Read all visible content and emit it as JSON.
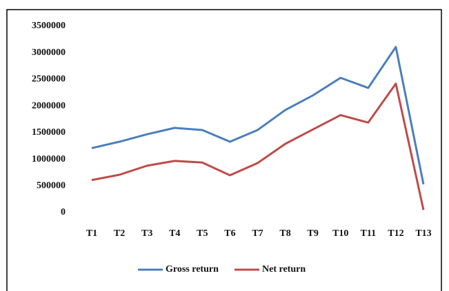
{
  "chart_data": {
    "type": "line",
    "categories": [
      "T1",
      "T2",
      "T3",
      "T4",
      "T5",
      "T6",
      "T7",
      "T8",
      "T9",
      "T10",
      "T11",
      "T12",
      "T13"
    ],
    "series": [
      {
        "name": "Gross return",
        "color": "#4a7ebb",
        "values": [
          1210000,
          1330000,
          1470000,
          1590000,
          1550000,
          1330000,
          1550000,
          1925000,
          2200000,
          2530000,
          2340000,
          3110000,
          530000
        ]
      },
      {
        "name": "Net return",
        "color": "#be4b48",
        "values": [
          610000,
          710000,
          880000,
          970000,
          940000,
          700000,
          930000,
          1290000,
          1560000,
          1830000,
          1690000,
          2420000,
          50000
        ]
      }
    ],
    "ylim": [
      0,
      3500000
    ],
    "yticks": [
      0,
      500000,
      1000000,
      1500000,
      2000000,
      2500000,
      3000000,
      3500000
    ],
    "legend": "bottom"
  }
}
